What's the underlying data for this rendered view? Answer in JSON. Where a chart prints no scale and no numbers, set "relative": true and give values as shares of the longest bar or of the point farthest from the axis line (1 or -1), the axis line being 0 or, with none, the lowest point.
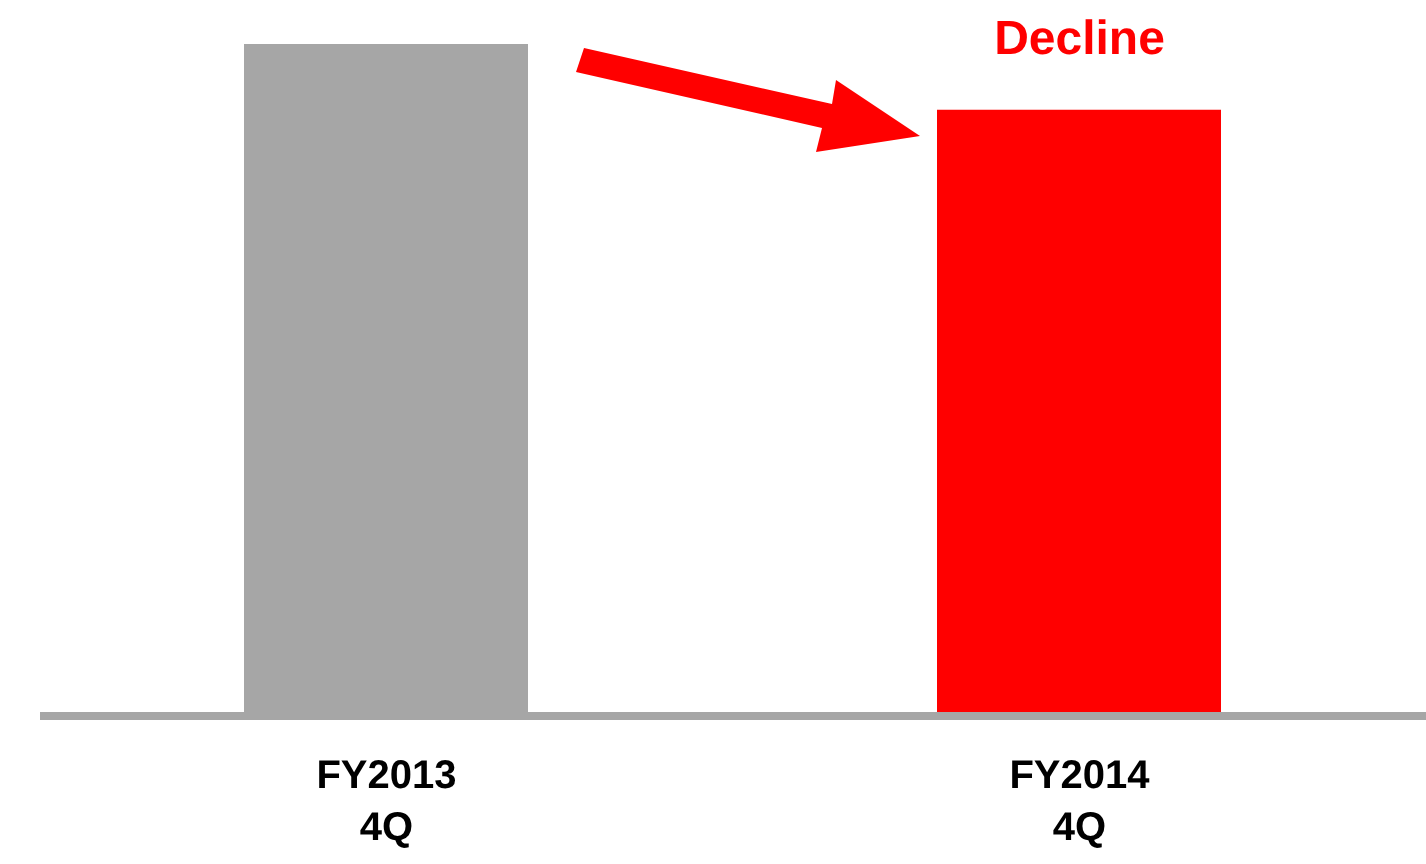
{
  "chart_data": {
    "type": "bar",
    "relative": true,
    "categories": [
      "FY2013 4Q",
      "FY2014 4Q"
    ],
    "values": [
      1,
      0.902
    ],
    "colors": [
      "#a6a6a6",
      "#ff0000"
    ],
    "annotations": [
      "Decline"
    ],
    "grid": false,
    "legend": false
  }
}
